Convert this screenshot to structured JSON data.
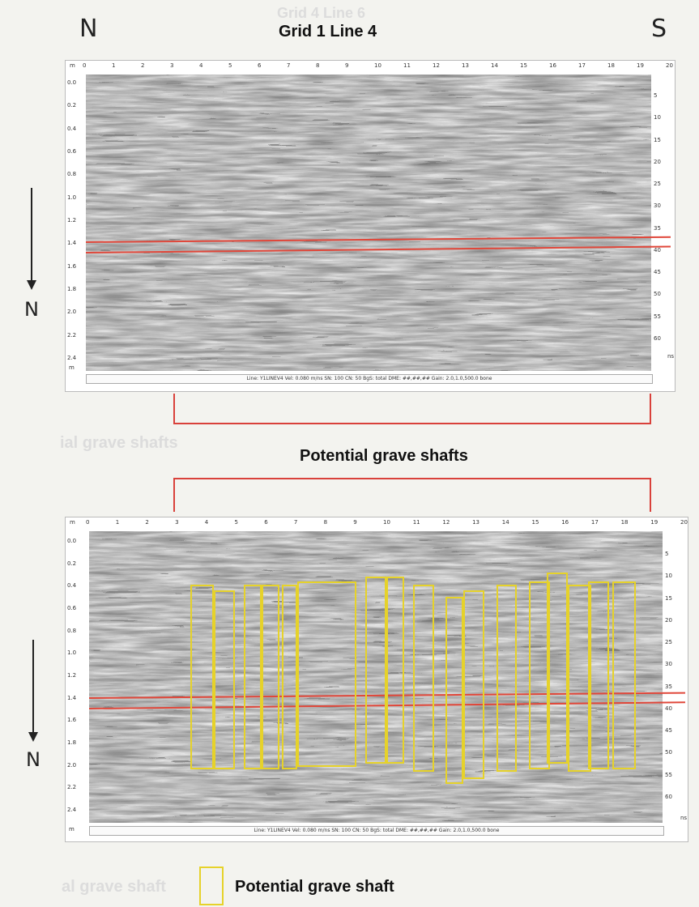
{
  "header": {
    "left_direction": "N",
    "right_direction": "S",
    "title": "Grid 1 Line 4",
    "ghost_title": "Grid 4 Line 6"
  },
  "side_arrows": {
    "label": "N"
  },
  "x_ticks": [
    "0",
    "1",
    "2",
    "3",
    "4",
    "5",
    "6",
    "7",
    "8",
    "9",
    "10",
    "11",
    "12",
    "13",
    "14",
    "15",
    "16",
    "17",
    "18",
    "19",
    "20"
  ],
  "x_unit": "m",
  "depth_ticks_m": [
    "0.0",
    "0.2",
    "0.4",
    "0.6",
    "0.8",
    "1.0",
    "1.2",
    "1.4",
    "1.6",
    "1.8",
    "2.0",
    "2.2",
    "2.4"
  ],
  "depth_unit": "m",
  "time_ticks_ns": [
    "5",
    "10",
    "15",
    "20",
    "25",
    "30",
    "35",
    "40",
    "45",
    "50",
    "55",
    "60"
  ],
  "time_unit": "ns",
  "status_bar": "Line: Y1LINEV4  Vel: 0.080 m/ns  SN: 100  CN: 50  BgS: total  DME: ##,##,##  Gain: 2.0,1.0,500.0  bone",
  "bracket_label": "Potential grave shafts",
  "ghost_labels": [
    "ial grave shafts",
    "al grave shaft"
  ],
  "legend_label": "Potential grave shaft",
  "colors": {
    "bracket": "#d9413b",
    "shaft_outline": "#e6d22a",
    "reflector_line": "#e0473a"
  },
  "shafts": [
    {
      "x0": 3.4,
      "x1": 4.2,
      "d0": 0.45,
      "d1": 2.0
    },
    {
      "x0": 4.2,
      "x1": 4.9,
      "d0": 0.5,
      "d1": 2.0
    },
    {
      "x0": 5.2,
      "x1": 5.8,
      "d0": 0.45,
      "d1": 2.0
    },
    {
      "x0": 5.8,
      "x1": 6.4,
      "d0": 0.45,
      "d1": 2.0
    },
    {
      "x0": 6.5,
      "x1": 7.0,
      "d0": 0.45,
      "d1": 2.0
    },
    {
      "x0": 7.0,
      "x1": 9.0,
      "d0": 0.42,
      "d1": 1.98
    },
    {
      "x0": 9.3,
      "x1": 10.0,
      "d0": 0.38,
      "d1": 1.95
    },
    {
      "x0": 10.0,
      "x1": 10.6,
      "d0": 0.38,
      "d1": 1.95
    },
    {
      "x0": 10.9,
      "x1": 11.6,
      "d0": 0.45,
      "d1": 2.02
    },
    {
      "x0": 12.0,
      "x1": 12.6,
      "d0": 0.55,
      "d1": 2.12
    },
    {
      "x0": 12.6,
      "x1": 13.3,
      "d0": 0.5,
      "d1": 2.08
    },
    {
      "x0": 13.7,
      "x1": 14.4,
      "d0": 0.45,
      "d1": 2.02
    },
    {
      "x0": 14.8,
      "x1": 15.5,
      "d0": 0.42,
      "d1": 2.0
    },
    {
      "x0": 15.4,
      "x1": 16.1,
      "d0": 0.35,
      "d1": 1.95
    },
    {
      "x0": 16.1,
      "x1": 16.9,
      "d0": 0.45,
      "d1": 2.02
    },
    {
      "x0": 16.8,
      "x1": 17.5,
      "d0": 0.42,
      "d1": 2.0
    },
    {
      "x0": 17.6,
      "x1": 18.4,
      "d0": 0.42,
      "d1": 2.0
    }
  ]
}
